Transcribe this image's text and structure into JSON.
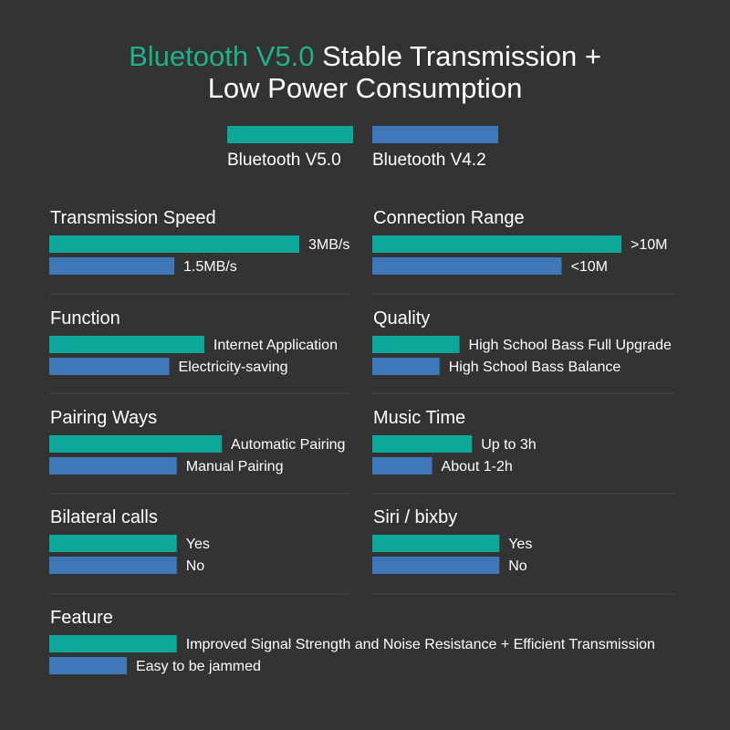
{
  "page": {
    "title_accent": "Bluetooth V5.0",
    "title_rest": " Stable Transmission +",
    "title_line2": "Low Power Consumption"
  },
  "colors": {
    "background": "#333333",
    "v50": "#0ea89a",
    "v42": "#3f78b8",
    "divider": "#4a4a4a",
    "text": "#ffffff",
    "accent": "#1eb18e"
  },
  "legend": [
    {
      "label": "Bluetooth V5.0",
      "color": "#0ea89a"
    },
    {
      "label": "Bluetooth V4.2",
      "color": "#3f78b8"
    }
  ],
  "chart_data": {
    "type": "bar",
    "series": [
      {
        "name": "Bluetooth V5.0"
      },
      {
        "name": "Bluetooth V4.2"
      }
    ],
    "panels": [
      {
        "title": "Transmission Speed",
        "bars": [
          {
            "value": 1.0,
            "label": "3MB/s"
          },
          {
            "value": 0.5,
            "label": "1.5MB/s"
          }
        ]
      },
      {
        "title": "Connection Range",
        "bars": [
          {
            "value": 1.0,
            "label": ">10M"
          },
          {
            "value": 0.76,
            "label": "<10M"
          }
        ]
      },
      {
        "title": "Function",
        "bars": [
          {
            "value": 0.62,
            "label": "Internet Application"
          },
          {
            "value": 0.48,
            "label": "Electricity-saving"
          }
        ]
      },
      {
        "title": "Quality",
        "bars": [
          {
            "value": 0.35,
            "label": "High School Bass Full Upgrade"
          },
          {
            "value": 0.27,
            "label": "High School Bass Balance"
          }
        ]
      },
      {
        "title": "Pairing Ways",
        "bars": [
          {
            "value": 0.69,
            "label": "Automatic Pairing"
          },
          {
            "value": 0.51,
            "label": "Manual Pairing"
          }
        ]
      },
      {
        "title": "Music Time",
        "bars": [
          {
            "value": 0.4,
            "label": "Up to 3h"
          },
          {
            "value": 0.24,
            "label": "About 1-2h"
          }
        ]
      },
      {
        "title": "Bilateral calls",
        "bars": [
          {
            "value": 0.51,
            "label": "Yes"
          },
          {
            "value": 0.51,
            "label": "No"
          }
        ]
      },
      {
        "title": "Siri / bixby",
        "bars": [
          {
            "value": 0.51,
            "label": "Yes"
          },
          {
            "value": 0.51,
            "label": "No"
          }
        ]
      },
      {
        "title": "Feature",
        "bars": [
          {
            "value": 0.51,
            "label": "Improved Signal Strength and Noise Resistance + Efficient Transmission"
          },
          {
            "value": 0.31,
            "label": "Easy to be jammed"
          }
        ]
      }
    ]
  }
}
